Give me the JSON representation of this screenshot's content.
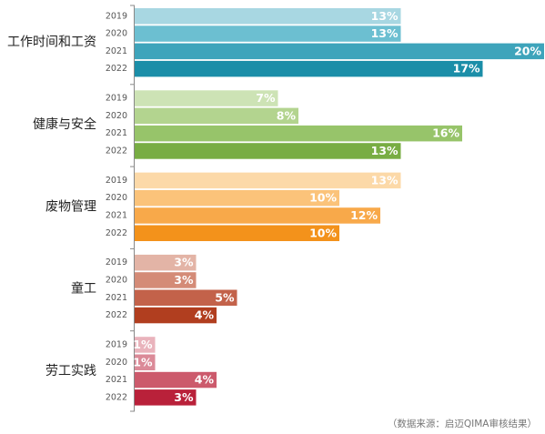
{
  "chart_data": {
    "type": "bar",
    "orientation": "horizontal",
    "xlim": [
      0,
      20
    ],
    "groups": [
      {
        "label": "工作时间和工资",
        "years": [
          "2019",
          "2020",
          "2021",
          "2022"
        ],
        "values": [
          13,
          13,
          20,
          17
        ],
        "value_labels": [
          "13%",
          "13%",
          "20%",
          "17%"
        ],
        "colors": [
          "#a8d7e2",
          "#6cbfd1",
          "#3ea4bb",
          "#1b8ea8"
        ]
      },
      {
        "label": "健康与安全",
        "years": [
          "2019",
          "2020",
          "2021",
          "2022"
        ],
        "values": [
          7,
          8,
          16,
          13
        ],
        "value_labels": [
          "7%",
          "8%",
          "16%",
          "13%"
        ],
        "colors": [
          "#cde3b5",
          "#b3d48f",
          "#97c46a",
          "#78ad43"
        ]
      },
      {
        "label": "废物管理",
        "years": [
          "2019",
          "2020",
          "2021",
          "2022"
        ],
        "values": [
          13,
          10,
          12,
          10
        ],
        "value_labels": [
          "13%",
          "10%",
          "12%",
          "10%"
        ],
        "colors": [
          "#fcd9a8",
          "#fbc37a",
          "#f8a94a",
          "#f3921b"
        ]
      },
      {
        "label": "童工",
        "years": [
          "2019",
          "2020",
          "2021",
          "2022"
        ],
        "values": [
          3,
          3,
          5,
          4
        ],
        "value_labels": [
          "3%",
          "3%",
          "5%",
          "4%"
        ],
        "colors": [
          "#e3b4a6",
          "#d48b77",
          "#c3624a",
          "#b13e1f"
        ]
      },
      {
        "label": "劳工实践",
        "years": [
          "2019",
          "2020",
          "2021",
          "2022"
        ],
        "values": [
          1,
          1,
          4,
          3
        ],
        "value_labels": [
          "1%",
          "1%",
          "4%",
          "3%"
        ],
        "colors": [
          "#e9b3bc",
          "#db8a98",
          "#cc5a6c",
          "#b9213a"
        ]
      }
    ],
    "source": "（数据来源：启迈QIMA审核结果）"
  }
}
